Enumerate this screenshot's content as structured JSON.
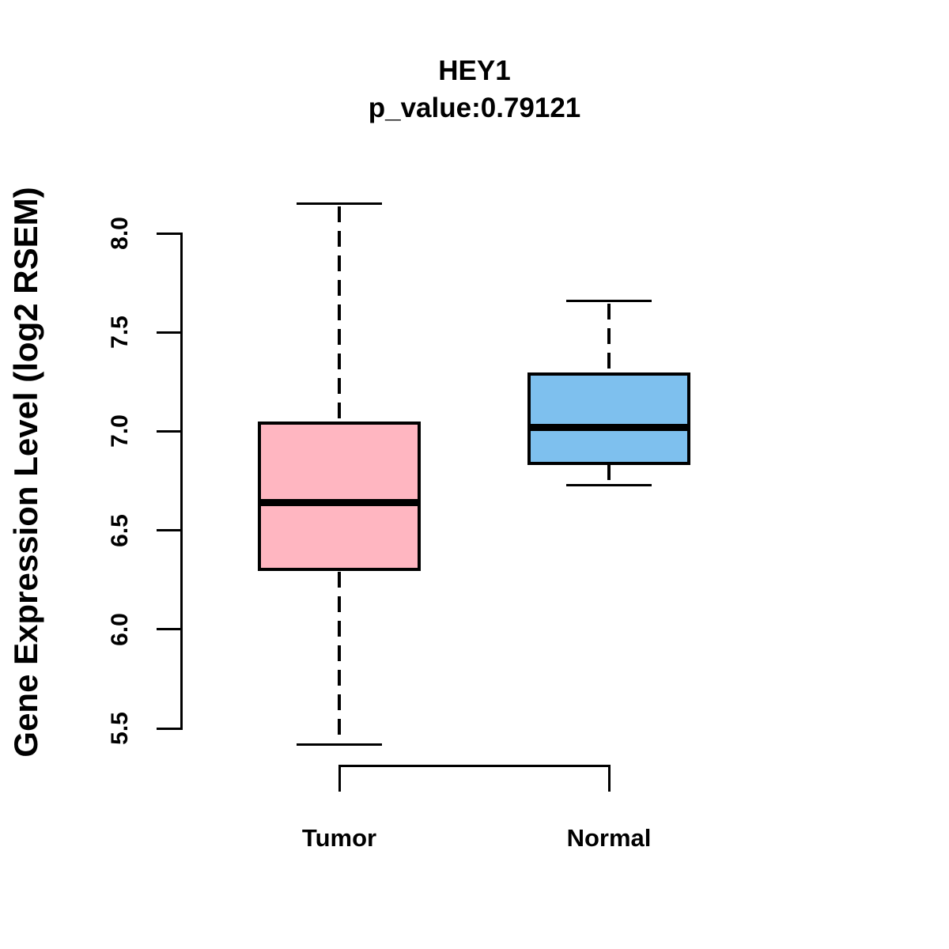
{
  "figure": {
    "background": "#FFFFFF"
  },
  "chart_data": {
    "type": "boxplot",
    "title": "HEY1",
    "subtitle": "p_value:0.79121",
    "xlabel": "",
    "ylabel": "Gene Expression Level (log2 RSEM)",
    "y_axis": {
      "min": 5.5,
      "max": 8.0,
      "step": 0.5,
      "tick_labels": [
        "5.5",
        "6.0",
        "6.5",
        "7.0",
        "7.5",
        "8.0"
      ],
      "tick_values": [
        5.5,
        6.0,
        6.5,
        7.0,
        7.5,
        8.0
      ]
    },
    "groups": [
      {
        "label": "Tumor",
        "fill_color": "#FFB6C1",
        "whisker_low": 5.42,
        "q1": 6.3,
        "median": 6.64,
        "q3": 7.04,
        "whisker_high": 8.15
      },
      {
        "label": "Normal",
        "fill_color": "#7EC0EE",
        "whisker_low": 6.73,
        "q1": 6.84,
        "median": 7.02,
        "q3": 7.29,
        "whisker_high": 7.66
      }
    ],
    "style": {
      "box_border_color": "#000000",
      "median_color": "#000000",
      "axis_color": "#000000",
      "whisker_style": "dashed",
      "legend": "none",
      "grid": "off"
    }
  }
}
